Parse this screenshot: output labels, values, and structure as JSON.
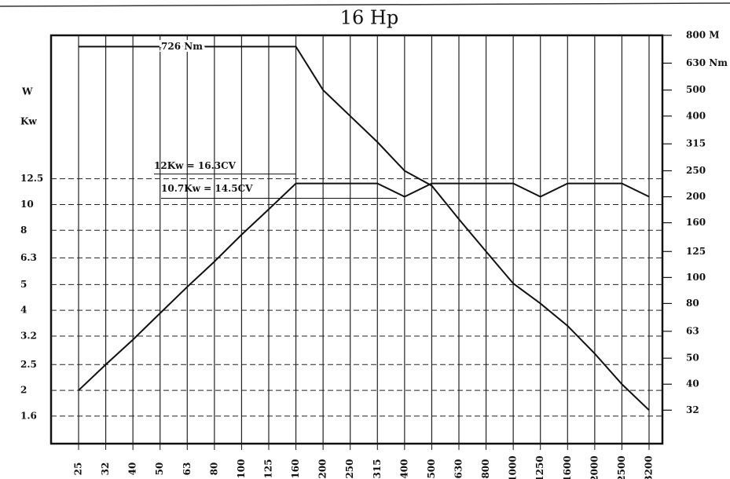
{
  "chart_data": {
    "type": "line",
    "title": "16 Hp",
    "left_axis_units": [
      "W",
      "Kw"
    ],
    "categories": [
      "25",
      "32",
      "40",
      "50",
      "63",
      "80",
      "100",
      "125",
      "160",
      "200",
      "250",
      "315",
      "400",
      "500",
      "630",
      "800",
      "1000",
      "1250",
      "1600",
      "2000",
      "2500",
      "3200"
    ],
    "series": [
      {
        "name": "Kw",
        "color": "#111111",
        "values": [
          2,
          2.5,
          3.1,
          3.9,
          4.9,
          6.1,
          7.7,
          9.6,
          12,
          12,
          12,
          12,
          10.7,
          12,
          12,
          12,
          12,
          10.7,
          12,
          12,
          12,
          10.7
        ]
      },
      {
        "name": "Nm",
        "color": "#111111",
        "axis": "y2",
        "values": [
          726,
          726,
          726,
          726,
          726,
          726,
          726,
          726,
          726,
          500,
          400,
          320,
          250,
          220,
          165,
          125,
          95,
          80,
          66,
          52,
          40,
          32
        ]
      }
    ],
    "annotations": [
      "726 Nm",
      "12Kw = 16.3CV",
      "10.7Kw = 14.5CV"
    ],
    "log_scale": true,
    "ylim": [
      1.26,
      43.3
    ],
    "yticks": [
      12.5,
      10,
      8,
      6.3,
      5,
      4,
      3.2,
      2.5,
      2,
      1.6
    ],
    "y2lim": [
      24,
      800
    ],
    "y2ticks": [
      {
        "value": 800,
        "label": "800 M"
      },
      {
        "value": 630,
        "label": "630 Nm"
      },
      500,
      400,
      315,
      250,
      200,
      160,
      125,
      100,
      80,
      63,
      50,
      40,
      32
    ],
    "grid": true
  }
}
